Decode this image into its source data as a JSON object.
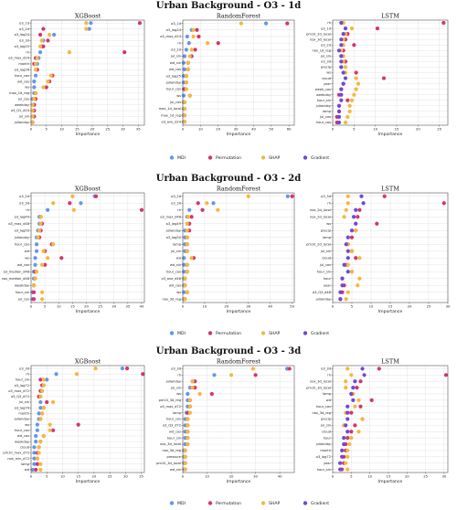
{
  "colors": {
    "MDI": "#6495ed",
    "Permutation": "#d6336c",
    "SHAP": "#f5b83d",
    "Gradient": "#7048d6"
  },
  "legend": [
    "MDI",
    "Permutation",
    "SHAP",
    "Gradient"
  ],
  "xlabel": "Importance",
  "chart_data": [
    {
      "title": "Urban Background - O3 - 1d",
      "panels": [
        {
          "name": "XGBoost",
          "xlim": [
            0,
            37
          ],
          "xticks": [
            0,
            5,
            10,
            15,
            20,
            25,
            30,
            35
          ],
          "features": [
            "o3_1d",
            "o3_2d",
            "o3_lag24",
            "o3_3d",
            "o3_lag25",
            "rh",
            "o3_max_d24",
            "month",
            "o3_lag26",
            "hour_cos",
            "wd_cos",
            "ws",
            "max_1d_reg",
            "jul_cos",
            "weekday",
            "o3_Q1_d24",
            "jul_sin",
            "julianday"
          ],
          "MDI": [
            19.5,
            19,
            7.5,
            4,
            3.5,
            3,
            2.5,
            2,
            2,
            1.5,
            1,
            1,
            1,
            0.5,
            0.5,
            0.5,
            0.5,
            0.5
          ],
          "Permutation": [
            35.5,
            4,
            3,
            5.5,
            4,
            30.5,
            1.5,
            1,
            2,
            7,
            6,
            5,
            1.5,
            1.5,
            1,
            1,
            1,
            0.5
          ],
          "SHAP": [
            18,
            18,
            6,
            3.5,
            3,
            12.5,
            2,
            1.5,
            1.5,
            6.5,
            5.5,
            4,
            1.5,
            1,
            0.5,
            0.5,
            0.5,
            0.5
          ]
        },
        {
          "name": "RandomForest",
          "xlim": [
            0,
            63
          ],
          "xticks": [
            0,
            10,
            20,
            30,
            40,
            50,
            60
          ],
          "features": [
            "o3_1d",
            "o3_lag24",
            "o3_max_d24",
            "rh",
            "o3_2d",
            "jul_sin",
            "wd_sin",
            "wd_cos",
            "o3_lag25",
            "julianday",
            "hour_cos",
            "ws",
            "jul_cos",
            "max_1d_local",
            "max_1d_reg",
            "o3_ave_d24"
          ],
          "MDI": [
            47,
            5,
            2.5,
            3.5,
            2,
            1,
            0.5,
            1,
            0.5,
            0.5,
            0.5,
            0.5,
            0.5,
            0.5,
            0.5,
            0.5
          ],
          "Permutation": [
            59,
            8,
            9,
            20,
            7,
            5,
            3,
            3,
            2,
            2,
            1,
            4,
            1,
            1,
            1,
            1
          ],
          "SHAP": [
            33,
            6,
            6,
            14,
            5,
            4,
            3,
            3,
            2,
            2,
            2,
            4,
            1,
            1,
            1,
            1
          ]
        },
        {
          "name": "LSTM",
          "xlim": [
            0,
            27
          ],
          "xticks": [
            0,
            5,
            10,
            15,
            20,
            25
          ],
          "features": [
            "rh",
            "o3_1d",
            "pm10_2d_local",
            "nox_3d_local",
            "o3_2d",
            "nox_1d_reg",
            "jul_sin",
            "o3_3d",
            "precip",
            "ws",
            "cloud",
            "year",
            "week_cos",
            "weekday",
            "hour_sin",
            "julianday",
            "lamp",
            "jul_cos",
            "hour_cos"
          ],
          "MDI": [],
          "Permutation": [
            26,
            10.5,
            3.5,
            3,
            5,
            2.5,
            2,
            3,
            2,
            5.5,
            12,
            2.5,
            2,
            1.5,
            3.5,
            1.5,
            1.5,
            1,
            1
          ],
          "SHAP": [
            2.5,
            4.5,
            3,
            2.5,
            2.5,
            2,
            2.5,
            2.5,
            3,
            3,
            5.5,
            6,
            5.5,
            5,
            4.5,
            4,
            4,
            3.5,
            3
          ],
          "Gradient": [
            2,
            3,
            2.5,
            2,
            2,
            1.5,
            2,
            2,
            2,
            2.5,
            3,
            2.5,
            2,
            2,
            2,
            1.5,
            1.5,
            1.5,
            1.5
          ]
        }
      ]
    },
    {
      "title": "Urban Background - O3 - 2d",
      "panels": [
        {
          "name": "XGBoost",
          "xlim": [
            0,
            41
          ],
          "xticks": [
            0,
            5,
            10,
            15,
            20,
            25,
            30,
            35,
            40
          ],
          "features": [
            "o3_2d",
            "o3_3d",
            "rh",
            "o3_lag49",
            "o3_max_d48",
            "o3_lag50",
            "julianday",
            "hour_cos",
            "wd",
            "ws",
            "wd_cos",
            "o3_median_d48",
            "nox_median_d48",
            "weekday",
            "hour_sin",
            "jul_cos"
          ],
          "MDI": [
            23,
            18,
            6,
            3,
            3,
            2.5,
            2,
            2,
            2,
            1.5,
            1.5,
            1,
            1,
            1,
            0.5,
            0.5
          ],
          "Permutation": [
            23.5,
            14,
            40,
            3.5,
            4,
            3.5,
            3,
            7.5,
            5,
            11,
            5,
            1.5,
            1.5,
            1,
            1,
            1
          ],
          "SHAP": [
            15,
            8,
            15.5,
            3.5,
            3.5,
            3,
            2.5,
            8,
            4.5,
            6,
            4,
            2,
            1.5,
            1,
            4,
            4
          ]
        },
        {
          "name": "RandomForest",
          "xlim": [
            0,
            51
          ],
          "xticks": [
            0,
            10,
            20,
            30,
            40,
            50
          ],
          "features": [
            "o3_2d",
            "o3_3d",
            "rh",
            "o3_max_d48",
            "o3_lag49",
            "julianday",
            "o3_lag50",
            "lamp",
            "jul_sin",
            "wd",
            "wd_sin",
            "hour_cos",
            "o3_ave_d48",
            "wd_cos",
            "ws",
            "nox_3d_reg"
          ],
          "MDI": [
            48,
            14,
            3,
            2,
            2,
            1,
            1,
            1,
            1,
            0.5,
            0.5,
            0.5,
            0.5,
            0.5,
            0.5,
            0.5
          ],
          "Permutation": [
            50,
            7,
            9,
            4,
            3,
            3,
            2,
            2,
            2,
            5,
            2,
            2,
            1,
            1,
            2,
            1
          ],
          "SHAP": [
            30,
            11,
            16,
            2.5,
            2,
            2,
            2,
            2,
            2,
            4,
            2,
            2,
            1,
            1,
            2,
            1
          ]
        },
        {
          "name": "LSTM",
          "xlim": [
            0,
            30
          ],
          "xticks": [
            0,
            5,
            10,
            15,
            20,
            25,
            30
          ],
          "features": [
            "o3_3d",
            "rh",
            "nox_2d_local",
            "nox_2d_local",
            "ws",
            "precip",
            "lamp",
            "pm10_2d_local",
            "jul_sin",
            "cloud",
            "jul_cos",
            "hour_sin",
            "hour",
            "year",
            "o3_Q3_d48",
            "julianday"
          ],
          "MDI": [],
          "Permutation": [
            13.5,
            29,
            7,
            6.5,
            11.5,
            6,
            5,
            4,
            5,
            6,
            3.5,
            5,
            2.5,
            3,
            2.5,
            2
          ],
          "SHAP": [
            4,
            4,
            3.5,
            3,
            6,
            6,
            4,
            4,
            5,
            7,
            4,
            5,
            7,
            6.5,
            4,
            3.5
          ],
          "Gradient": [
            7.5,
            8,
            6,
            5.5,
            6,
            5,
            4,
            3.5,
            4,
            4,
            3,
            4,
            2.5,
            2.5,
            2,
            2
          ]
        }
      ]
    },
    {
      "title": "Urban Background - O3 - 3d",
      "panels": [
        {
          "name": "XGBoost",
          "xlim": [
            0,
            36
          ],
          "xticks": [
            0,
            5,
            10,
            15,
            20,
            25,
            30,
            35
          ],
          "features": [
            "o3_3d",
            "rh",
            "hour_sin",
            "o3_lag72",
            "o3_max_d72",
            "o3_Q3_d72",
            "jul_sin",
            "o3_lag74",
            "month",
            "julianday",
            "ws",
            "hour_cos",
            "wd_cos",
            "weekday",
            "cloud",
            "pm10_max_d72",
            "nox_min_d72",
            "lamp",
            "wd"
          ],
          "MDI": [
            29,
            8,
            5,
            4,
            3.5,
            3,
            3,
            3,
            2.5,
            2.5,
            2,
            2,
            1.5,
            1.5,
            1,
            1,
            1,
            1,
            0.5
          ],
          "Permutation": [
            30.5,
            35.5,
            3,
            3.5,
            3,
            2.5,
            5,
            4,
            3.5,
            3,
            15,
            7,
            4,
            3,
            2.5,
            2,
            2,
            2,
            1.5
          ],
          "SHAP": [
            20.5,
            14.5,
            4,
            4,
            3.5,
            3,
            7,
            4,
            3.5,
            3,
            6,
            6,
            4,
            3,
            2.5,
            2.5,
            2,
            3,
            3
          ]
        },
        {
          "name": "RandomForest",
          "xlim": [
            0,
            46
          ],
          "xticks": [
            0,
            10,
            20,
            30,
            40
          ],
          "features": [
            "o3_3d",
            "rh",
            "julianday",
            "jul_sin",
            "ws",
            "pm10_3d_reg",
            "o3_max_d72",
            "lamp",
            "hour_cos",
            "o3_Q3_d72",
            "wd_cos",
            "hour_sin",
            "nox_3d_local",
            "nox_3d_reg",
            "pressure",
            "pm10_3d_local",
            "wd_sin"
          ],
          "MDI": [
            43,
            13,
            4,
            3,
            2,
            2,
            2,
            1.5,
            1,
            1,
            1,
            1,
            1,
            0.5,
            0.5,
            0.5,
            0.5
          ],
          "Permutation": [
            44,
            30,
            5,
            5,
            12,
            3,
            3,
            2,
            2,
            2,
            2,
            2,
            2,
            1,
            1,
            1,
            1
          ],
          "SHAP": [
            29,
            20,
            4,
            4,
            7,
            3,
            3,
            3,
            2,
            2,
            2,
            2,
            2,
            1,
            1,
            1,
            1
          ]
        },
        {
          "name": "LSTM",
          "xlim": [
            0,
            31
          ],
          "xticks": [
            0,
            5,
            10,
            15,
            20,
            25,
            30
          ],
          "features": [
            "o3_3d",
            "rh",
            "nox_3d_local",
            "pm10_3d_local",
            "lamp",
            "wd",
            "hour_cos",
            "nox_3d_reg",
            "precip",
            "jul_sin",
            "cloud",
            "hour",
            "julianday",
            "month",
            "o3_lag72",
            "year",
            "hour_sin"
          ],
          "MDI": [],
          "Permutation": [
            12.5,
            30.5,
            7.5,
            6.5,
            5,
            10.5,
            7.5,
            5,
            8,
            6,
            5,
            4,
            3.5,
            3.5,
            3,
            3,
            2.5
          ],
          "SHAP": [
            4,
            5,
            3.5,
            3.5,
            5.5,
            7,
            6,
            3.5,
            8,
            3,
            7,
            5,
            4.5,
            4,
            4,
            3.5,
            4
          ],
          "Gradient": [
            8,
            8.5,
            6,
            5.5,
            5,
            5.5,
            4,
            4,
            4,
            3.5,
            4,
            3,
            3,
            2.5,
            2.5,
            2,
            2
          ]
        }
      ]
    }
  ]
}
